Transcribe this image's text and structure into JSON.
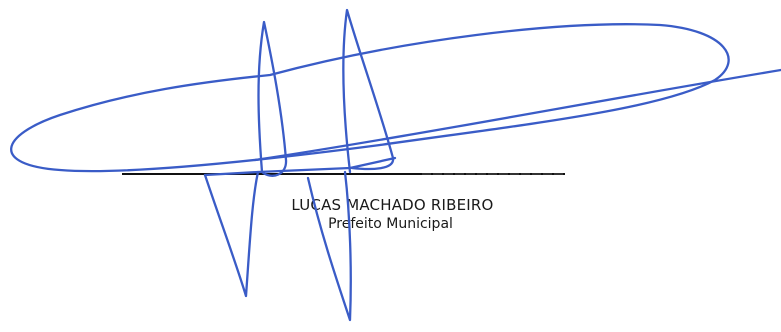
{
  "signature": {
    "name": "LUCAS MACHADO RIBEIRO",
    "role": "Prefeito Municipal",
    "ink_color": "#3a5cc7"
  }
}
